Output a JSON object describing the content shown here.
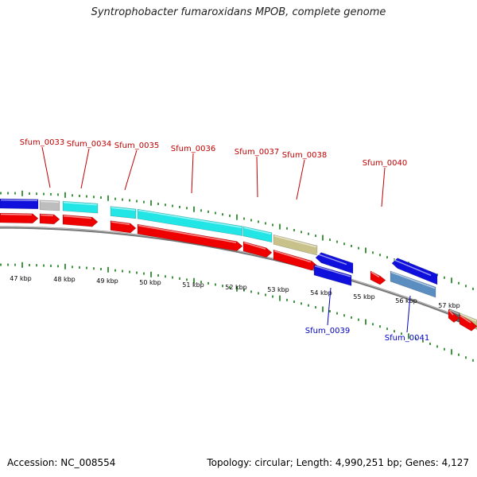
{
  "title": "Syntrophobacter fumaroxidans MPOB, complete genome",
  "footer": {
    "accession": "Accession: NC_008554",
    "topology": "Topology: circular; Length: 4,990,251 bp; Genes: 4,127"
  },
  "colors": {
    "forward_label": "#c00000",
    "reverse_label": "#0000c0",
    "tick": "#2e8b2e",
    "backbone": "#777777",
    "cds": "#ee0000",
    "blue_feature": "#1010dd",
    "cyan_feature": "#22e6e6",
    "khaki_feature": "#c8c28a",
    "grey_feature": "#bdbdbd",
    "steel_feature": "#5a8dc0",
    "dark_grey_feature": "#666666"
  },
  "kbp_scale": [
    {
      "label": "47 kbp"
    },
    {
      "label": "48 kbp"
    },
    {
      "label": "49 kbp"
    },
    {
      "label": "50 kbp"
    },
    {
      "label": "51 kbp"
    },
    {
      "label": "52 kbp"
    },
    {
      "label": "53 kbp"
    },
    {
      "label": "54 kbp"
    },
    {
      "label": "55 kbp"
    },
    {
      "label": "56 kbp"
    },
    {
      "label": "57 kbp"
    }
  ],
  "gene_labels": [
    {
      "name": "Sfum_0033",
      "strand": "forward"
    },
    {
      "name": "Sfum_0034",
      "strand": "forward"
    },
    {
      "name": "Sfum_0035",
      "strand": "forward"
    },
    {
      "name": "Sfum_0036",
      "strand": "forward"
    },
    {
      "name": "Sfum_0037",
      "strand": "forward"
    },
    {
      "name": "Sfum_0038",
      "strand": "forward"
    },
    {
      "name": "Sfum_0040",
      "strand": "forward"
    },
    {
      "name": "Sfum_0039",
      "strand": "reverse"
    },
    {
      "name": "Sfum_0041",
      "strand": "reverse"
    }
  ]
}
